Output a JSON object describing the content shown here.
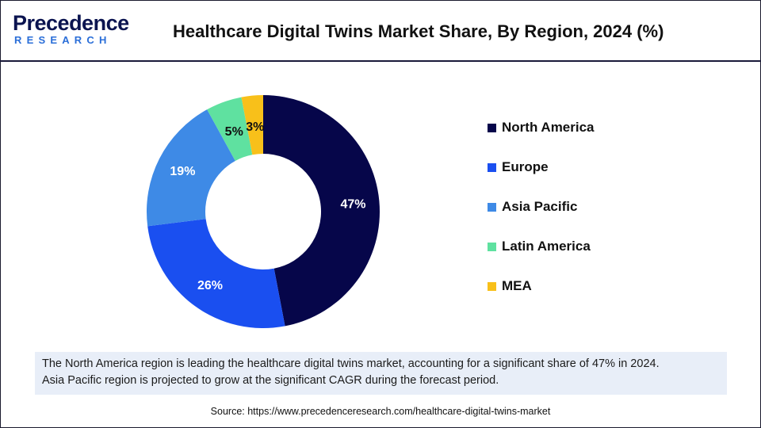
{
  "header": {
    "logo_word": "Precedence",
    "logo_sub": "RESEARCH",
    "title": "Healthcare Digital Twins Market Share, By Region, 2024 (%)"
  },
  "chart_data": {
    "type": "pie",
    "donut": true,
    "categories": [
      "North America",
      "Europe",
      "Asia Pacific",
      "Latin America",
      "MEA"
    ],
    "values": [
      47,
      26,
      19,
      5,
      3
    ],
    "labels": [
      "47%",
      "26%",
      "19%",
      "5%",
      "3%"
    ],
    "colors": [
      "#06064a",
      "#1a4ff0",
      "#3e8ae6",
      "#5fe1a0",
      "#f8c01a"
    ],
    "label_colors": [
      "#ffffff",
      "#ffffff",
      "#ffffff",
      "#111111",
      "#111111"
    ],
    "unit": "%",
    "legend_position": "right"
  },
  "legend": {
    "items": [
      {
        "label": "North America",
        "color": "#06064a"
      },
      {
        "label": "Europe",
        "color": "#1a4ff0"
      },
      {
        "label": "Asia Pacific",
        "color": "#3e8ae6"
      },
      {
        "label": "Latin America",
        "color": "#5fe1a0"
      },
      {
        "label": "MEA",
        "color": "#f8c01a"
      }
    ]
  },
  "note": {
    "line1": "The North America region is leading the healthcare digital twins market, accounting for a significant share of 47% in 2024.",
    "line2": "Asia Pacific region is projected to grow at the significant CAGR during the forecast period."
  },
  "source": "Source: https://www.precedenceresearch.com/healthcare-digital-twins-market"
}
